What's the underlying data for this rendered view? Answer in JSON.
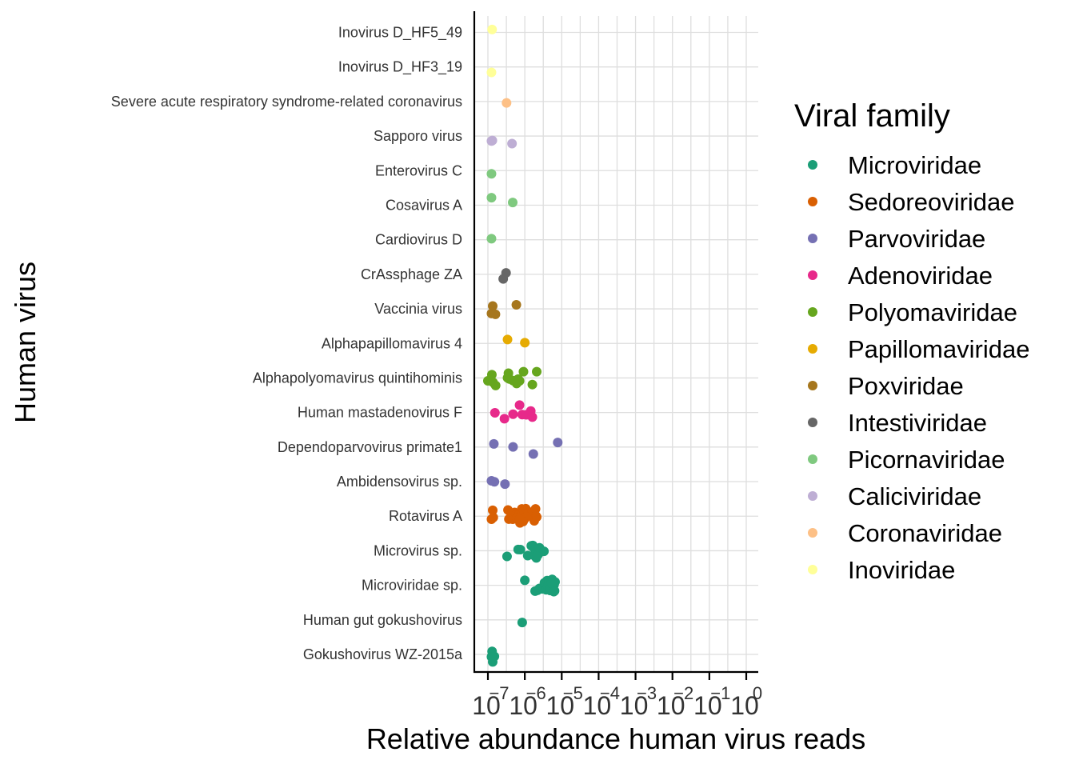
{
  "chart_data": {
    "type": "scatter",
    "xlabel": "Relative abundance human virus reads",
    "ylabel": "Human virus",
    "x_scale": "log10",
    "xlim": [
      1e-07,
      1
    ],
    "x_ticks": [
      {
        "base": "10",
        "exp": "−7"
      },
      {
        "base": "10",
        "exp": "−6"
      },
      {
        "base": "10",
        "exp": "−5"
      },
      {
        "base": "10",
        "exp": "−4"
      },
      {
        "base": "10",
        "exp": "−3"
      },
      {
        "base": "10",
        "exp": "−2"
      },
      {
        "base": "10",
        "exp": "−1"
      },
      {
        "base": "10",
        "exp": "0"
      }
    ],
    "grid": true,
    "legend": {
      "title": "Viral family",
      "position": "right",
      "entries": [
        {
          "name": "Microviridae",
          "color": "#1b9e77"
        },
        {
          "name": "Sedoreoviridae",
          "color": "#d95f02"
        },
        {
          "name": "Parvoviridae",
          "color": "#7570b3"
        },
        {
          "name": "Adenoviridae",
          "color": "#e7298a"
        },
        {
          "name": "Polyomaviridae",
          "color": "#66a61e"
        },
        {
          "name": "Papillomaviridae",
          "color": "#e6ab02"
        },
        {
          "name": "Poxviridae",
          "color": "#a6761d"
        },
        {
          "name": "Intestiviridae",
          "color": "#666666"
        },
        {
          "name": "Picornaviridae",
          "color": "#7fc97f"
        },
        {
          "name": "Caliciviridae",
          "color": "#beaed4"
        },
        {
          "name": "Coronaviridae",
          "color": "#fdc086"
        },
        {
          "name": "Inoviridae",
          "color": "#ffff99"
        }
      ]
    },
    "categories": [
      "Gokushovirus WZ-2015a",
      "Human gut gokushovirus",
      "Microviridae sp.",
      "Microvirus sp.",
      "Rotavirus A",
      "Ambidensovirus sp.",
      "Dependoparvovirus primate1",
      "Human mastadenovirus F",
      "Alphapolyomavirus quintihominis",
      "Alphapapillomavirus 4",
      "Vaccinia virus",
      "CrAssphage ZA",
      "Cardiovirus D",
      "Cosavirus A",
      "Enterovirus C",
      "Sapporo virus",
      "Severe acute respiratory syndrome-related coronavirus",
      "Inovirus D_HF3_19",
      "Inovirus D_HF5_49"
    ],
    "series": [
      {
        "name": "Microviridae",
        "points": [
          [
            "Gokushovirus WZ-2015a",
            1.25e-07
          ],
          [
            "Gokushovirus WZ-2015a",
            1.3e-07
          ],
          [
            "Gokushovirus WZ-2015a",
            1.5e-07
          ],
          [
            "Gokushovirus WZ-2015a",
            1.35e-07
          ],
          [
            "Gokushovirus WZ-2015a",
            1.28e-07
          ],
          [
            "Human gut gokushovirus",
            8.5e-07
          ],
          [
            "Microviridae sp.",
            1e-06
          ],
          [
            "Microviridae sp.",
            1.9e-06
          ],
          [
            "Microviridae sp.",
            2.5e-06
          ],
          [
            "Microviridae sp.",
            2.2e-06
          ],
          [
            "Microviridae sp.",
            3e-06
          ],
          [
            "Microviridae sp.",
            3.4e-06
          ],
          [
            "Microviridae sp.",
            3.8e-06
          ],
          [
            "Microviridae sp.",
            4e-06
          ],
          [
            "Microviridae sp.",
            4.2e-06
          ],
          [
            "Microviridae sp.",
            4.6e-06
          ],
          [
            "Microviridae sp.",
            5.2e-06
          ],
          [
            "Microviridae sp.",
            5.8e-06
          ],
          [
            "Microviridae sp.",
            6.4e-06
          ],
          [
            "Microviridae sp.",
            4.9e-06
          ],
          [
            "Microviridae sp.",
            5.5e-06
          ],
          [
            "Microviridae sp.",
            6.2e-06
          ],
          [
            "Microviridae sp.",
            5e-06
          ],
          [
            "Microviridae sp.",
            5.9e-06
          ],
          [
            "Microviridae sp.",
            6.6e-06
          ],
          [
            "Microviridae sp.",
            5.4e-06
          ],
          [
            "Microviridae sp.",
            6.1e-06
          ],
          [
            "Microvirus sp.",
            3.3e-07
          ],
          [
            "Microvirus sp.",
            6.6e-07
          ],
          [
            "Microvirus sp.",
            7.6e-07
          ],
          [
            "Microvirus sp.",
            1.2e-06
          ],
          [
            "Microvirus sp.",
            1.5e-06
          ],
          [
            "Microvirus sp.",
            1.65e-06
          ],
          [
            "Microvirus sp.",
            1.75e-06
          ],
          [
            "Microvirus sp.",
            1.85e-06
          ],
          [
            "Microvirus sp.",
            1.95e-06
          ],
          [
            "Microvirus sp.",
            2.05e-06
          ],
          [
            "Microvirus sp.",
            2.15e-06
          ],
          [
            "Microvirus sp.",
            2.3e-06
          ],
          [
            "Microvirus sp.",
            1.7e-06
          ],
          [
            "Microvirus sp.",
            1.9e-06
          ],
          [
            "Microvirus sp.",
            2e-06
          ],
          [
            "Microvirus sp.",
            1.8e-06
          ],
          [
            "Microvirus sp.",
            2.5e-06
          ],
          [
            "Microvirus sp.",
            3.3e-06
          ],
          [
            "Microvirus sp.",
            2.1e-06
          ]
        ]
      },
      {
        "name": "Sedoreoviridae",
        "points": [
          [
            "Rotavirus A",
            1.25e-07
          ],
          [
            "Rotavirus A",
            1.35e-07
          ],
          [
            "Rotavirus A",
            1.4e-07
          ],
          [
            "Rotavirus A",
            3.5e-07
          ],
          [
            "Rotavirus A",
            3.7e-07
          ],
          [
            "Rotavirus A",
            4.3e-07
          ],
          [
            "Rotavirus A",
            4.7e-07
          ],
          [
            "Rotavirus A",
            5.3e-07
          ],
          [
            "Rotavirus A",
            5.9e-07
          ],
          [
            "Rotavirus A",
            6.4e-07
          ],
          [
            "Rotavirus A",
            6.9e-07
          ],
          [
            "Rotavirus A",
            7.4e-07
          ],
          [
            "Rotavirus A",
            7.9e-07
          ],
          [
            "Rotavirus A",
            8.3e-07
          ],
          [
            "Rotavirus A",
            8.9e-07
          ],
          [
            "Rotavirus A",
            9.4e-07
          ],
          [
            "Rotavirus A",
            1e-06
          ],
          [
            "Rotavirus A",
            1.06e-06
          ],
          [
            "Rotavirus A",
            1.15e-06
          ],
          [
            "Rotavirus A",
            1.25e-06
          ],
          [
            "Rotavirus A",
            1.4e-06
          ],
          [
            "Rotavirus A",
            1.6e-06
          ],
          [
            "Rotavirus A",
            1.8e-06
          ],
          [
            "Rotavirus A",
            2e-06
          ],
          [
            "Rotavirus A",
            1.1e-06
          ],
          [
            "Rotavirus A",
            9e-07
          ],
          [
            "Rotavirus A",
            6e-07
          ],
          [
            "Rotavirus A",
            7.2e-07
          ],
          [
            "Rotavirus A",
            1.95e-06
          ],
          [
            "Rotavirus A",
            2.1e-06
          ]
        ]
      },
      {
        "name": "Parvoviridae",
        "points": [
          [
            "Ambidensovirus sp.",
            1.25e-07
          ],
          [
            "Ambidensovirus sp.",
            1.5e-07
          ],
          [
            "Ambidensovirus sp.",
            2.9e-07
          ],
          [
            "Dependoparvovirus primate1",
            1.45e-07
          ],
          [
            "Dependoparvovirus primate1",
            4.8e-07
          ],
          [
            "Dependoparvovirus primate1",
            1.7e-06
          ],
          [
            "Dependoparvovirus primate1",
            7.8e-06
          ]
        ]
      },
      {
        "name": "Adenoviridae",
        "points": [
          [
            "Human mastadenovirus F",
            1.55e-07
          ],
          [
            "Human mastadenovirus F",
            2.8e-07
          ],
          [
            "Human mastadenovirus F",
            4.8e-07
          ],
          [
            "Human mastadenovirus F",
            7.2e-07
          ],
          [
            "Human mastadenovirus F",
            8.5e-07
          ],
          [
            "Human mastadenovirus F",
            1.1e-06
          ],
          [
            "Human mastadenovirus F",
            1.45e-06
          ],
          [
            "Human mastadenovirus F",
            1.6e-06
          ]
        ]
      },
      {
        "name": "Polyomaviridae",
        "points": [
          [
            "Alphapolyomavirus quintihominis",
            1e-07
          ],
          [
            "Alphapolyomavirus quintihominis",
            1.28e-07
          ],
          [
            "Alphapolyomavirus quintihominis",
            1.38e-07
          ],
          [
            "Alphapolyomavirus quintihominis",
            1.62e-07
          ],
          [
            "Alphapolyomavirus quintihominis",
            3.4e-07
          ],
          [
            "Alphapolyomavirus quintihominis",
            3.6e-07
          ],
          [
            "Alphapolyomavirus quintihominis",
            3.8e-07
          ],
          [
            "Alphapolyomavirus quintihominis",
            4.8e-07
          ],
          [
            "Alphapolyomavirus quintihominis",
            6e-07
          ],
          [
            "Alphapolyomavirus quintihominis",
            6.6e-07
          ],
          [
            "Alphapolyomavirus quintihominis",
            7.2e-07
          ],
          [
            "Alphapolyomavirus quintihominis",
            9.2e-07
          ],
          [
            "Alphapolyomavirus quintihominis",
            1.6e-06
          ],
          [
            "Alphapolyomavirus quintihominis",
            2.1e-06
          ]
        ]
      },
      {
        "name": "Papillomaviridae",
        "points": [
          [
            "Alphapapillomavirus 4",
            3.4e-07
          ],
          [
            "Alphapapillomavirus 4",
            1e-06
          ]
        ]
      },
      {
        "name": "Poxviridae",
        "points": [
          [
            "Vaccinia virus",
            1.25e-07
          ],
          [
            "Vaccinia virus",
            1.35e-07
          ],
          [
            "Vaccinia virus",
            1.6e-07
          ],
          [
            "Vaccinia virus",
            5.9e-07
          ]
        ]
      },
      {
        "name": "Intestiviridae",
        "points": [
          [
            "CrAssphage ZA",
            2.6e-07
          ],
          [
            "CrAssphage ZA",
            3.1e-07
          ]
        ]
      },
      {
        "name": "Picornaviridae",
        "points": [
          [
            "Cardiovirus D",
            1.25e-07
          ],
          [
            "Cosavirus A",
            1.25e-07
          ],
          [
            "Cosavirus A",
            4.7e-07
          ],
          [
            "Enterovirus C",
            1.25e-07
          ]
        ]
      },
      {
        "name": "Caliciviridae",
        "points": [
          [
            "Sapporo virus",
            1.25e-07
          ],
          [
            "Sapporo virus",
            1.32e-07
          ],
          [
            "Sapporo virus",
            4.5e-07
          ]
        ]
      },
      {
        "name": "Coronaviridae",
        "points": [
          [
            "Severe acute respiratory syndrome-related coronavirus",
            3.2e-07
          ]
        ]
      },
      {
        "name": "Inoviridae",
        "points": [
          [
            "Inovirus D_HF3_19",
            1.25e-07
          ],
          [
            "Inovirus D_HF5_49",
            1.3e-07
          ]
        ]
      }
    ]
  }
}
